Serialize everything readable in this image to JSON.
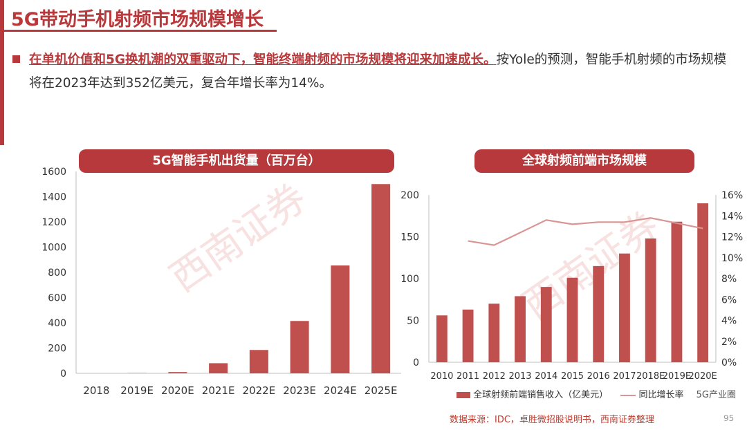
{
  "header": {
    "title": "5G带动手机射频市场规模增长"
  },
  "intro": {
    "emphasis": "在单机价值和5G换机潮的双重驱动下，智能终端射频的市场规模将迎来加速成长。",
    "rest": "按Yole的预测，智能手机射频的市场规模将在2023年达到352亿美元，复合年增长率为14%。"
  },
  "watermark": {
    "text": "西南证券"
  },
  "chart_data": [
    {
      "type": "bar",
      "title": "5G智能手机出货量（百万台）",
      "categories": [
        "2018",
        "2019E",
        "2020E",
        "2021E",
        "2022E",
        "2023E",
        "2024E",
        "2025E"
      ],
      "values": [
        0,
        2,
        10,
        80,
        185,
        415,
        855,
        1500
      ],
      "ylim": [
        0,
        1600
      ],
      "yticks": [
        0,
        200,
        400,
        600,
        800,
        1000,
        1200,
        1400,
        1600
      ],
      "color": "#c0504d"
    },
    {
      "type": "bar+line",
      "title": "全球射频前端市场规模",
      "categories": [
        "2010",
        "2011",
        "2012",
        "2013",
        "2014",
        "2015",
        "2016",
        "2017",
        "2018E",
        "2019E",
        "2020E"
      ],
      "series": [
        {
          "name": "全球射频前端销售收入（亿美元）",
          "type": "bar",
          "axis": "left",
          "values": [
            56,
            63,
            70,
            79,
            90,
            101,
            115,
            130,
            148,
            168,
            190
          ],
          "color": "#c0504d"
        },
        {
          "name": "同比增长率",
          "type": "line",
          "axis": "right",
          "values": [
            null,
            11.6,
            11.2,
            12.4,
            13.6,
            13.2,
            13.4,
            13.4,
            13.8,
            13.3,
            12.8
          ],
          "color": "#d99594"
        }
      ],
      "ylim_left": [
        0,
        200
      ],
      "yticks_left": [
        0,
        50,
        100,
        150,
        200
      ],
      "ylim_right": [
        0,
        16
      ],
      "yticks_right": [
        "0%",
        "2%",
        "4%",
        "6%",
        "8%",
        "10%",
        "12%",
        "14%",
        "16%"
      ]
    }
  ],
  "footer": {
    "source": "数据来源：IDC，卓胜微招股说明书，西南证券整理",
    "page": "95",
    "wechat_label": "5G产业圈"
  }
}
